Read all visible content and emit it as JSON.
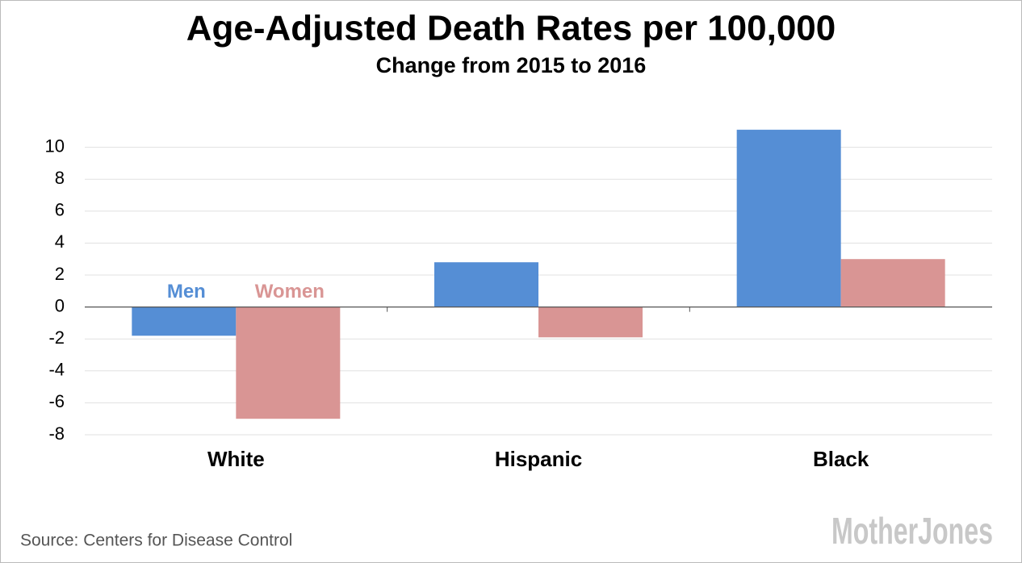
{
  "chart_data": {
    "type": "bar",
    "title": "Age-Adjusted Death Rates per 100,000",
    "subtitle": "Change from 2015 to 2016",
    "categories": [
      "White",
      "Hispanic",
      "Black"
    ],
    "series": [
      {
        "name": "Men",
        "color": "#558ed5",
        "values": [
          -1.8,
          2.8,
          11.1
        ]
      },
      {
        "name": "Women",
        "color": "#d99594",
        "values": [
          -7.0,
          -1.9,
          3.0
        ]
      }
    ],
    "ylim": [
      -8,
      12
    ],
    "yticks": [
      -8,
      -6,
      -4,
      -2,
      0,
      2,
      4,
      6,
      8,
      10
    ],
    "grid": true,
    "source": "Source: Centers for Disease Control",
    "logo": "MotherJones"
  }
}
